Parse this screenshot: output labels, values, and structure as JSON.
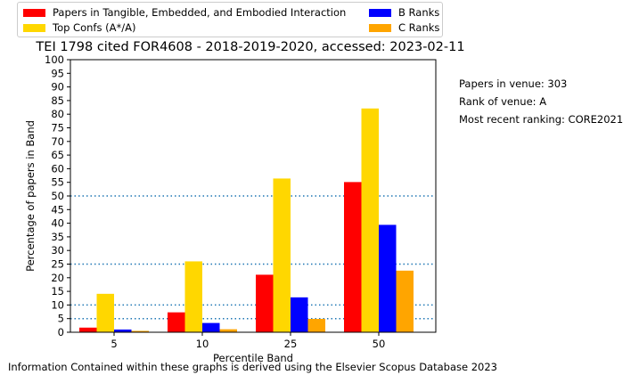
{
  "chart_data": {
    "type": "bar",
    "title": "TEI 1798 cited FOR4608 - 2018-2019-2020, accessed: 2023-02-11",
    "xlabel": "Percentile Band",
    "ylabel": "Percentage of papers in Band",
    "categories": [
      "5",
      "10",
      "25",
      "50"
    ],
    "ylim": [
      0,
      100
    ],
    "yticks": [
      0,
      5,
      10,
      15,
      20,
      25,
      30,
      35,
      40,
      45,
      50,
      55,
      60,
      65,
      70,
      75,
      80,
      85,
      90,
      95,
      100
    ],
    "reference_lines": [
      5,
      10,
      25,
      50
    ],
    "reference_line_color": "#1f77b4",
    "grid": false,
    "legend_position": "top-left, outside plot",
    "series": [
      {
        "name": "Papers in Tangible, Embedded, and Embodied Interaction",
        "color": "#ff0000",
        "values": [
          1.7,
          7.3,
          21.1,
          55.1
        ]
      },
      {
        "name": "Top Confs (A*/A)",
        "color": "#ffd700",
        "values": [
          14.1,
          26.0,
          56.4,
          82.1
        ]
      },
      {
        "name": "B Ranks",
        "color": "#0000ff",
        "values": [
          1.0,
          3.4,
          12.8,
          39.4
        ]
      },
      {
        "name": "C Ranks",
        "color": "#ffa500",
        "values": [
          0.5,
          1.1,
          4.9,
          22.6
        ]
      }
    ]
  },
  "legend": {
    "items": [
      {
        "label": "Papers in Tangible, Embedded, and Embodied Interaction",
        "color": "#ff0000"
      },
      {
        "label": "Top Confs (A*/A)",
        "color": "#ffd700"
      },
      {
        "label": "B Ranks",
        "color": "#0000ff"
      },
      {
        "label": "C Ranks",
        "color": "#ffa500"
      }
    ]
  },
  "side_info": {
    "papers_in_venue": "Papers in venue: 303",
    "rank_of_venue": "Rank of venue: A",
    "most_recent_ranking": "Most recent ranking: CORE2021"
  },
  "footer": "Information Contained within these graphs is derived using the Elsevier Scopus Database 2023"
}
